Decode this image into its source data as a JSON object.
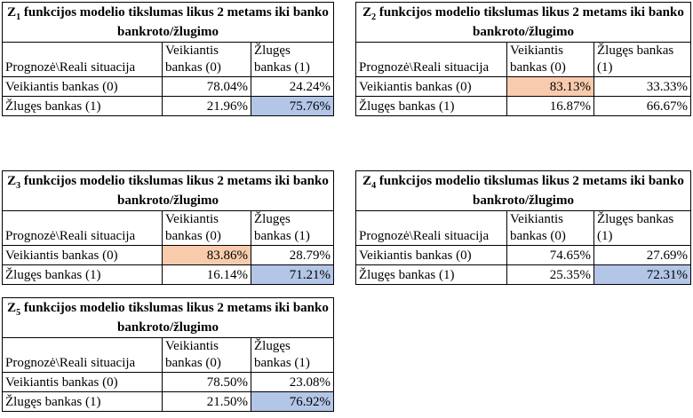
{
  "tables": [
    {
      "title": {
        "symbol": "Z",
        "sub": "1",
        "text": "funkcijos modelio tikslumas likus 2 metams iki banko bankroto/žlugimo"
      },
      "header": [
        "Prognozė\\Reali situacija",
        "Veikiantis bankas (0)",
        "Žlugęs bankas (1)"
      ],
      "rows": [
        [
          "Veikiantis bankas (0)",
          "78.04%",
          "24.24%"
        ],
        [
          "Žlugęs bankas (1)",
          "21.96%",
          "75.76%"
        ]
      ],
      "fills": [
        [
          null,
          null,
          null
        ],
        [
          null,
          null,
          "#b4c6e7"
        ]
      ]
    },
    {
      "title": {
        "symbol": "Z",
        "sub": "2",
        "text": "funkcijos modelio tikslumas likus 2 metams iki banko bankroto/žlugimo"
      },
      "header": [
        "Prognozė\\Reali situacija",
        "Veikiantis bankas (0)",
        "Žlugęs bankas (1)"
      ],
      "rows": [
        [
          "Veikiantis bankas (0)",
          "83.13%",
          "33.33%"
        ],
        [
          "Žlugęs bankas (1)",
          "16.87%",
          "66.67%"
        ]
      ],
      "fills": [
        [
          null,
          "#f8cbad",
          null
        ],
        [
          null,
          null,
          null
        ]
      ]
    },
    {
      "title": {
        "symbol": "Z",
        "sub": "3",
        "text": "funkcijos modelio tikslumas likus 2 metams iki banko bankroto/žlugimo"
      },
      "header": [
        "Prognozė\\Reali situacija",
        "Veikiantis bankas (0)",
        "Žlugęs bankas (1)"
      ],
      "rows": [
        [
          "Veikiantis bankas (0)",
          "83.86%",
          "28.79%"
        ],
        [
          "Žlugęs bankas (1)",
          "16.14%",
          "71.21%"
        ]
      ],
      "fills": [
        [
          null,
          "#f8cbad",
          null
        ],
        [
          null,
          null,
          "#b4c6e7"
        ]
      ]
    },
    {
      "title": {
        "symbol": "Z",
        "sub": "4",
        "text": "funkcijos modelio tikslumas likus 2 metams iki banko bankroto/žlugimo"
      },
      "header": [
        "Prognozė\\Reali situacija",
        "Veikiantis bankas (0)",
        "Žlugęs bankas (1)"
      ],
      "rows": [
        [
          "Veikiantis bankas (0)",
          "74.65%",
          "27.69%"
        ],
        [
          "Žlugęs bankas (1)",
          "25.35%",
          "72.31%"
        ]
      ],
      "fills": [
        [
          null,
          null,
          null
        ],
        [
          null,
          null,
          "#b4c6e7"
        ]
      ]
    },
    {
      "title": {
        "symbol": "Z",
        "sub": "5",
        "text": "funkcijos modelio tikslumas likus 2 metams iki banko bankroto/žlugimo"
      },
      "header": [
        "Prognozė\\Reali situacija",
        "Veikiantis bankas (0)",
        "Žlugęs bankas (1)"
      ],
      "rows": [
        [
          "Veikiantis bankas (0)",
          "78.50%",
          "23.08%"
        ],
        [
          "Žlugęs bankas (1)",
          "21.50%",
          "76.92%"
        ]
      ],
      "fills": [
        [
          null,
          null,
          null
        ],
        [
          null,
          null,
          "#b4c6e7"
        ]
      ]
    }
  ]
}
